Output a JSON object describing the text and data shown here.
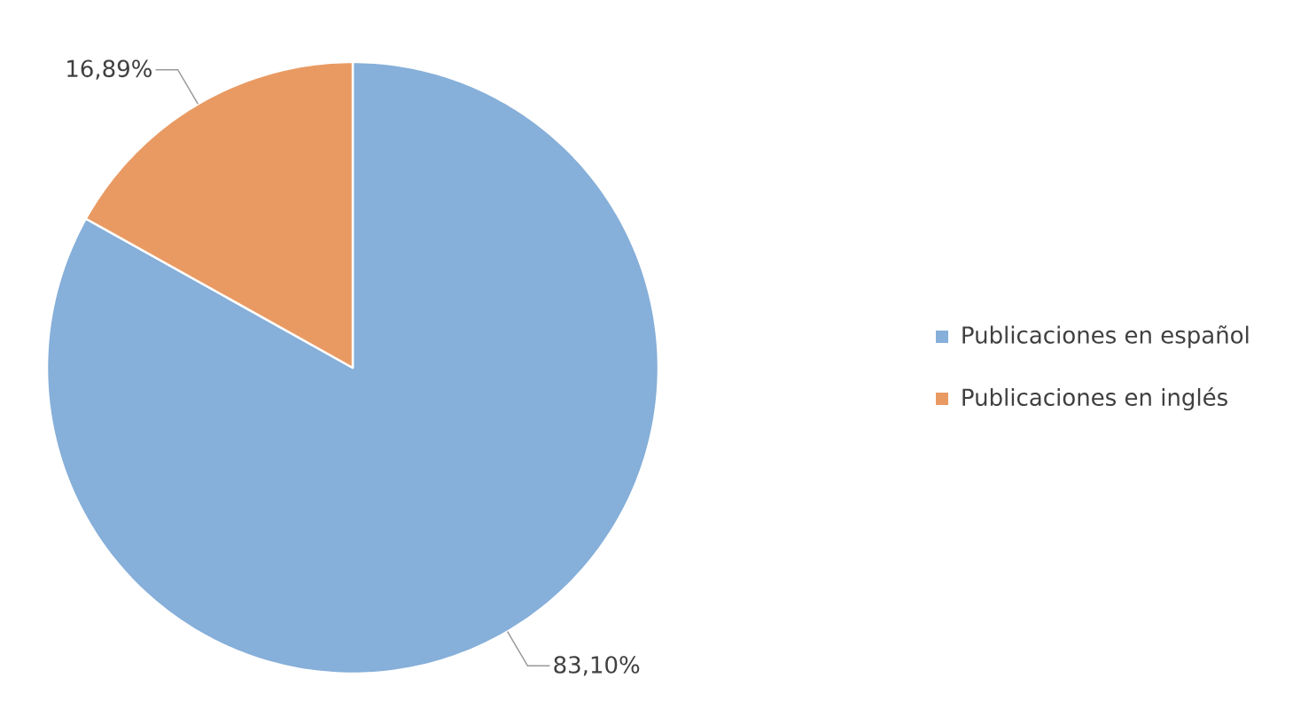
{
  "chart_data": {
    "type": "pie",
    "categories": [
      "Publicaciones en español",
      "Publicaciones en inglés"
    ],
    "values": [
      83.1,
      16.89
    ],
    "colors": [
      "#86afd9",
      "#e99a63"
    ],
    "value_labels": [
      "83,10%",
      "16,89%"
    ],
    "legend": "right"
  }
}
